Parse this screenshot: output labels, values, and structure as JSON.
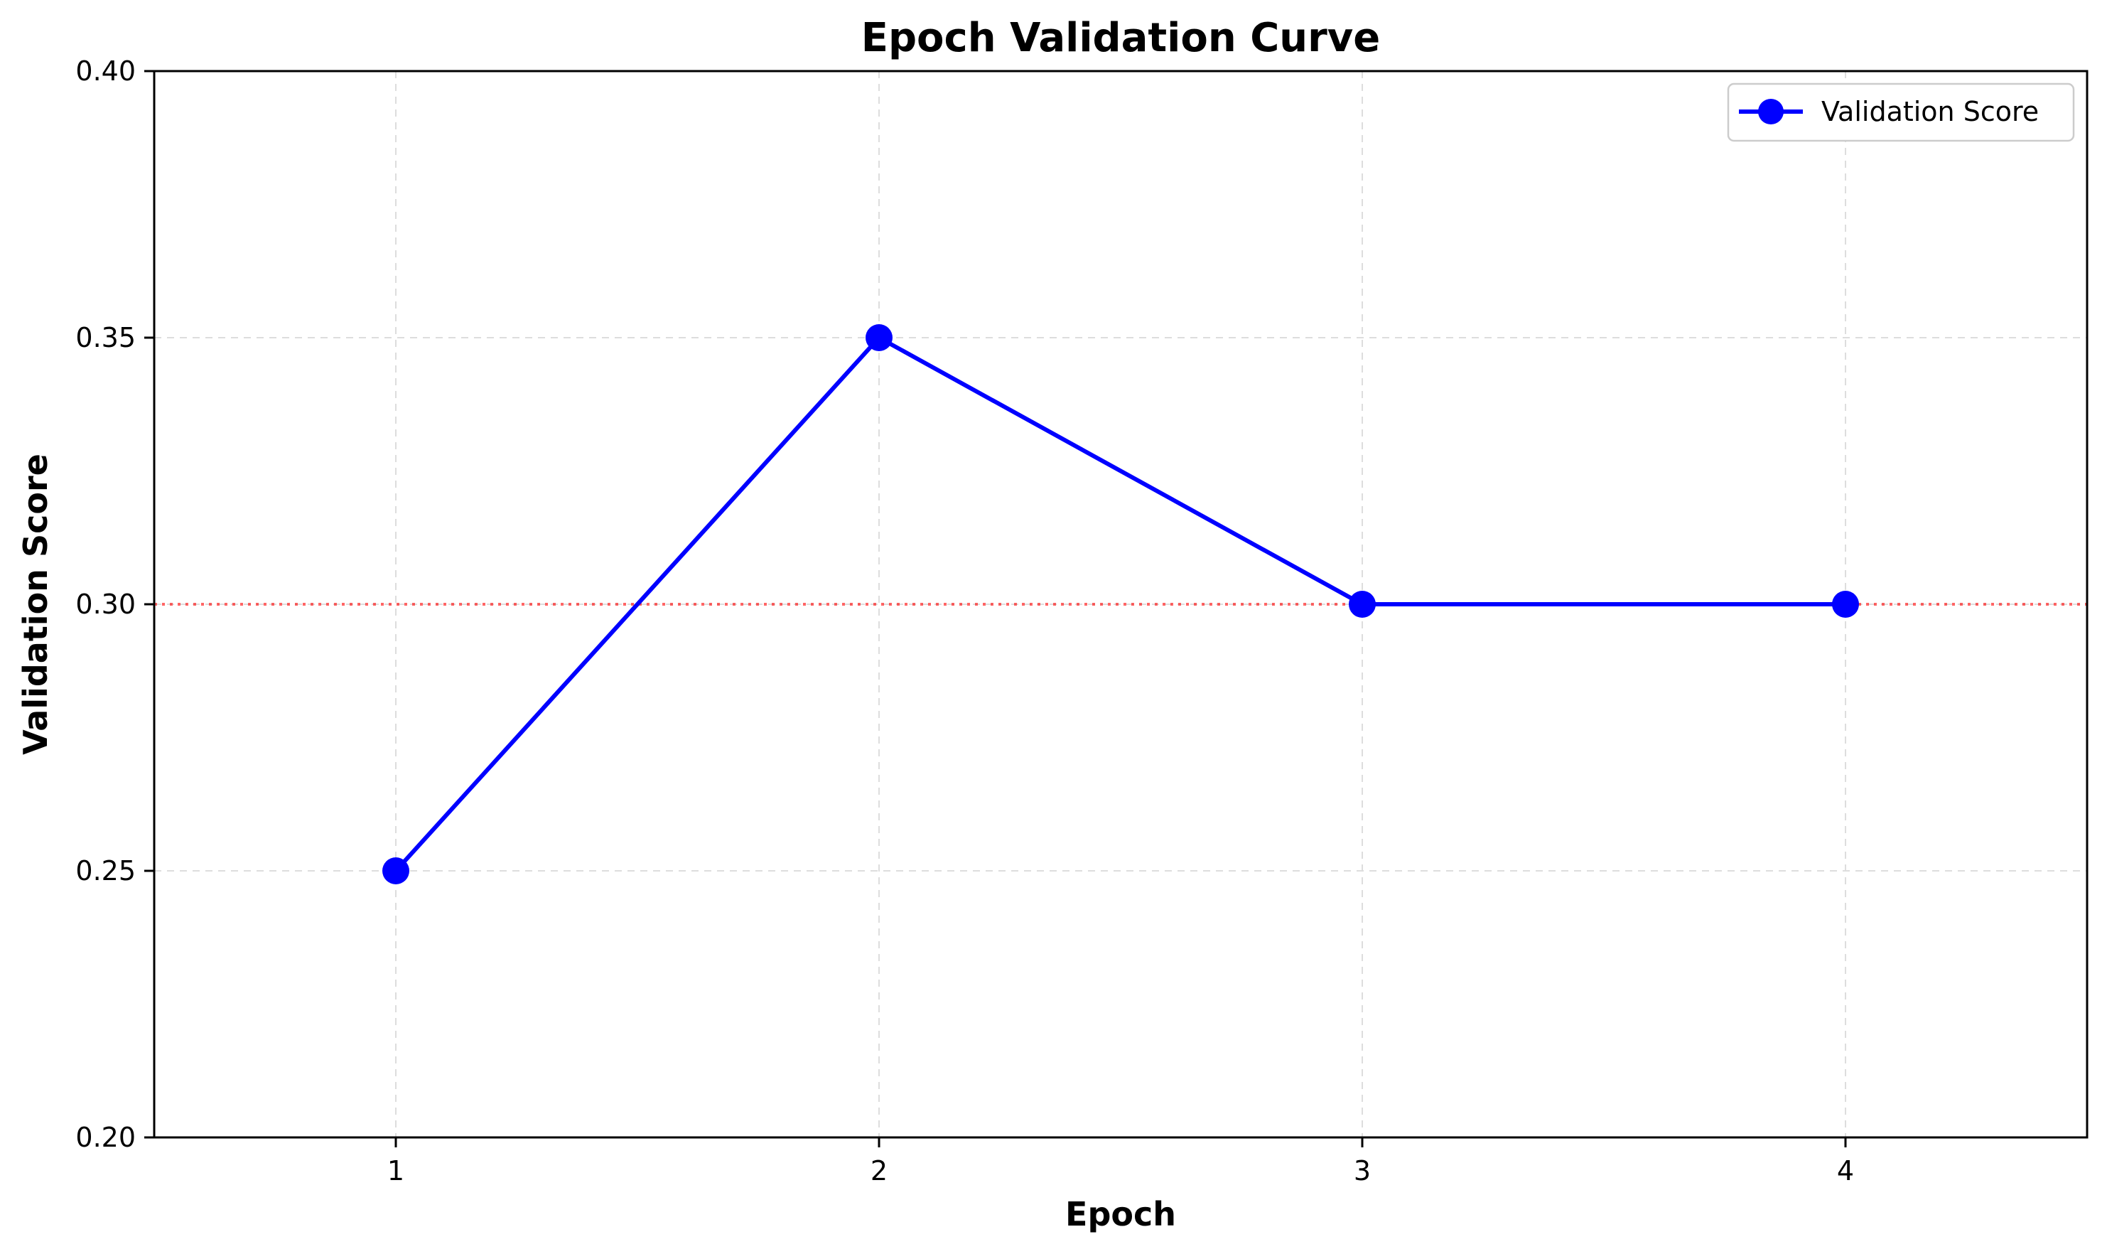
{
  "chart_data": {
    "type": "line",
    "title": "Epoch Validation Curve",
    "xlabel": "Epoch",
    "ylabel": "Validation Score",
    "x": [
      1,
      2,
      3,
      4
    ],
    "xticks": [
      "1",
      "2",
      "3",
      "4"
    ],
    "xlim": [
      0.5,
      4.5
    ],
    "ylim": [
      0.2,
      0.4
    ],
    "yticks": [
      "0.20",
      "0.25",
      "0.30",
      "0.35",
      "0.40"
    ],
    "series": [
      {
        "name": "Validation Score",
        "values": [
          0.25,
          0.35,
          0.3,
          0.3
        ],
        "color": "#0000ff",
        "marker": "circle"
      }
    ],
    "reference_line": {
      "y": 0.3,
      "color": "#ff0000",
      "style": "dotted"
    },
    "grid": true,
    "legend_position": "top-right"
  }
}
